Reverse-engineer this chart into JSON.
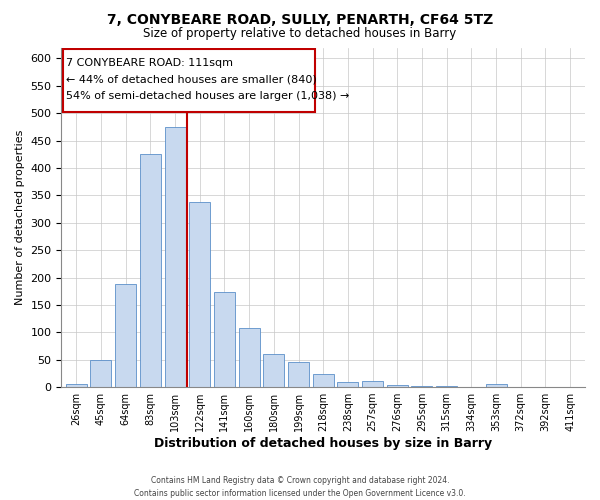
{
  "title": "7, CONYBEARE ROAD, SULLY, PENARTH, CF64 5TZ",
  "subtitle": "Size of property relative to detached houses in Barry",
  "xlabel": "Distribution of detached houses by size in Barry",
  "ylabel": "Number of detached properties",
  "categories": [
    "26sqm",
    "45sqm",
    "64sqm",
    "83sqm",
    "103sqm",
    "122sqm",
    "141sqm",
    "160sqm",
    "180sqm",
    "199sqm",
    "218sqm",
    "238sqm",
    "257sqm",
    "276sqm",
    "295sqm",
    "315sqm",
    "334sqm",
    "353sqm",
    "372sqm",
    "392sqm",
    "411sqm"
  ],
  "values": [
    5,
    50,
    188,
    425,
    475,
    338,
    173,
    108,
    60,
    46,
    24,
    10,
    12,
    4,
    2,
    2,
    1,
    5,
    1,
    1,
    1
  ],
  "bar_color": "#c8d9ef",
  "bar_edge_color": "#5b8fc9",
  "property_line_color": "#c00000",
  "annotation_line1": "7 CONYBEARE ROAD: 111sqm",
  "annotation_line2": "← 44% of detached houses are smaller (840)",
  "annotation_line3": "54% of semi-detached houses are larger (1,038) →",
  "annotation_box_color": "#c00000",
  "ylim": [
    0,
    620
  ],
  "yticks": [
    0,
    50,
    100,
    150,
    200,
    250,
    300,
    350,
    400,
    450,
    500,
    550,
    600
  ],
  "footer": "Contains HM Land Registry data © Crown copyright and database right 2024.\nContains public sector information licensed under the Open Government Licence v3.0.",
  "background_color": "#ffffff",
  "grid_color": "#c8c8c8"
}
